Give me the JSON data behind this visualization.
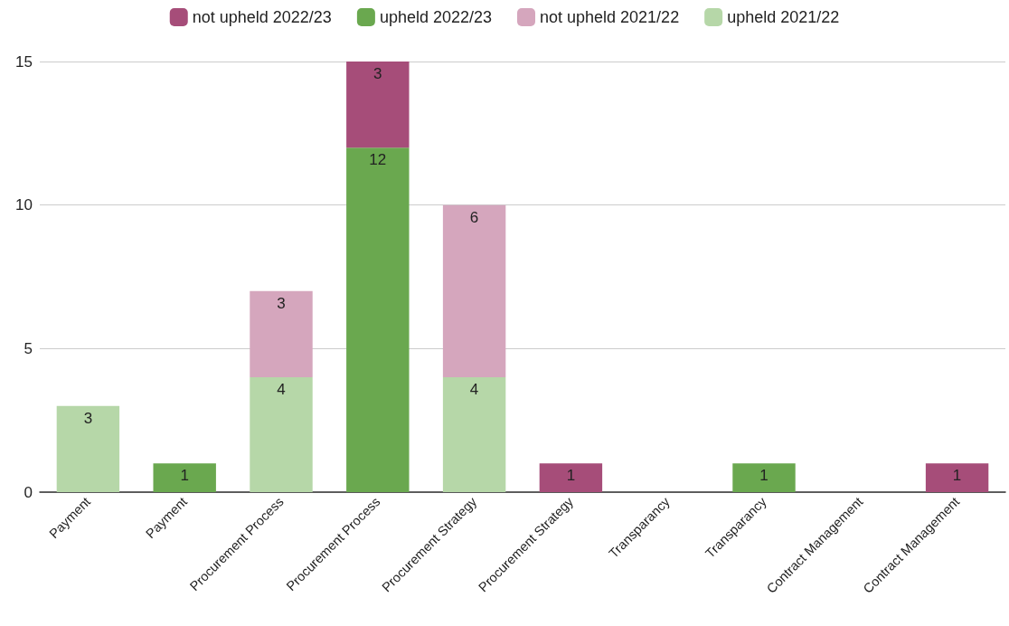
{
  "chart_data": {
    "type": "bar",
    "stacked": true,
    "categories": [
      "Payment",
      "Payment",
      "Procurement Process",
      "Procurement Process",
      "Procurement Strategy",
      "Procurement Strategy",
      "Transparancy",
      "Transparancy",
      "Contract Management",
      "Contract Management"
    ],
    "series": [
      {
        "name": "upheld 2021/22",
        "color": "#b6d7a8",
        "values": [
          3,
          null,
          4,
          null,
          4,
          null,
          null,
          null,
          null,
          null
        ]
      },
      {
        "name": "not upheld 2021/22",
        "color": "#d5a6bd",
        "values": [
          null,
          null,
          3,
          null,
          6,
          null,
          null,
          null,
          null,
          null
        ]
      },
      {
        "name": "upheld 2022/23",
        "color": "#6aa84f",
        "values": [
          null,
          1,
          null,
          12,
          null,
          null,
          null,
          1,
          null,
          null
        ]
      },
      {
        "name": "not upheld 2022/23",
        "color": "#a64d79",
        "values": [
          null,
          null,
          null,
          3,
          null,
          1,
          null,
          null,
          null,
          1
        ]
      }
    ],
    "ylim": [
      0,
      15
    ],
    "yticks": [
      0,
      5,
      10,
      15
    ],
    "grid": "y",
    "legend": "top",
    "data_labels": true
  }
}
